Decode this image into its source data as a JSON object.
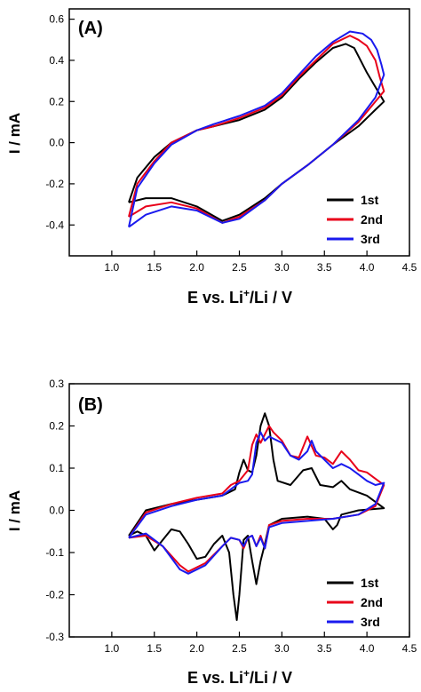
{
  "chart_data": [
    {
      "type": "line",
      "panel_label": "(A)",
      "xlabel_main": "E vs. Li",
      "xlabel_sup": "+",
      "xlabel_tail": "/Li / V",
      "ylabel": "I / mA",
      "xlim": [
        0.5,
        4.5
      ],
      "ylim": [
        -0.55,
        0.65
      ],
      "xticks": [
        "1.0",
        "1.5",
        "2.0",
        "2.5",
        "3.0",
        "3.5",
        "4.0",
        "4.5"
      ],
      "xtick_values": [
        1.0,
        1.5,
        2.0,
        2.5,
        3.0,
        3.5,
        4.0,
        4.5
      ],
      "yticks": [
        "-0.4",
        "-0.2",
        "0.0",
        "0.2",
        "0.4",
        "0.6"
      ],
      "ytick_values": [
        -0.4,
        -0.2,
        0.0,
        0.2,
        0.4,
        0.6
      ],
      "legend_position": "lower-right",
      "series": [
        {
          "name": "1st",
          "color": "#000000",
          "points": [
            [
              1.2,
              -0.29
            ],
            [
              1.4,
              -0.27
            ],
            [
              1.7,
              -0.27
            ],
            [
              2.0,
              -0.31
            ],
            [
              2.3,
              -0.38
            ],
            [
              2.5,
              -0.35
            ],
            [
              2.8,
              -0.27
            ],
            [
              3.0,
              -0.2
            ],
            [
              3.3,
              -0.11
            ],
            [
              3.6,
              -0.01
            ],
            [
              3.9,
              0.08
            ],
            [
              4.1,
              0.16
            ],
            [
              4.2,
              0.2
            ],
            [
              4.1,
              0.27
            ],
            [
              4.0,
              0.34
            ],
            [
              3.9,
              0.42
            ],
            [
              3.85,
              0.46
            ],
            [
              3.75,
              0.48
            ],
            [
              3.6,
              0.46
            ],
            [
              3.4,
              0.39
            ],
            [
              3.2,
              0.31
            ],
            [
              3.0,
              0.22
            ],
            [
              2.8,
              0.16
            ],
            [
              2.5,
              0.11
            ],
            [
              2.2,
              0.08
            ],
            [
              2.0,
              0.06
            ],
            [
              1.7,
              0.0
            ],
            [
              1.5,
              -0.07
            ],
            [
              1.3,
              -0.17
            ],
            [
              1.2,
              -0.29
            ]
          ]
        },
        {
          "name": "2nd",
          "color": "#e8001a",
          "points": [
            [
              1.2,
              -0.36
            ],
            [
              1.4,
              -0.31
            ],
            [
              1.7,
              -0.29
            ],
            [
              2.0,
              -0.32
            ],
            [
              2.3,
              -0.39
            ],
            [
              2.5,
              -0.36
            ],
            [
              2.8,
              -0.28
            ],
            [
              3.0,
              -0.2
            ],
            [
              3.3,
              -0.11
            ],
            [
              3.6,
              -0.01
            ],
            [
              3.9,
              0.1
            ],
            [
              4.1,
              0.2
            ],
            [
              4.2,
              0.25
            ],
            [
              4.15,
              0.32
            ],
            [
              4.1,
              0.4
            ],
            [
              4.0,
              0.47
            ],
            [
              3.9,
              0.5
            ],
            [
              3.8,
              0.52
            ],
            [
              3.6,
              0.48
            ],
            [
              3.4,
              0.4
            ],
            [
              3.2,
              0.32
            ],
            [
              3.0,
              0.23
            ],
            [
              2.8,
              0.17
            ],
            [
              2.5,
              0.12
            ],
            [
              2.2,
              0.08
            ],
            [
              2.0,
              0.06
            ],
            [
              1.7,
              0.0
            ],
            [
              1.5,
              -0.09
            ],
            [
              1.3,
              -0.2
            ],
            [
              1.2,
              -0.36
            ]
          ]
        },
        {
          "name": "3rd",
          "color": "#1a1aee",
          "points": [
            [
              1.2,
              -0.41
            ],
            [
              1.4,
              -0.35
            ],
            [
              1.7,
              -0.31
            ],
            [
              2.0,
              -0.33
            ],
            [
              2.3,
              -0.39
            ],
            [
              2.5,
              -0.37
            ],
            [
              2.8,
              -0.28
            ],
            [
              3.0,
              -0.2
            ],
            [
              3.3,
              -0.11
            ],
            [
              3.6,
              -0.01
            ],
            [
              3.9,
              0.11
            ],
            [
              4.1,
              0.22
            ],
            [
              4.2,
              0.33
            ],
            [
              4.17,
              0.38
            ],
            [
              4.12,
              0.45
            ],
            [
              4.05,
              0.5
            ],
            [
              3.95,
              0.53
            ],
            [
              3.8,
              0.54
            ],
            [
              3.6,
              0.49
            ],
            [
              3.4,
              0.42
            ],
            [
              3.2,
              0.33
            ],
            [
              3.0,
              0.24
            ],
            [
              2.8,
              0.18
            ],
            [
              2.5,
              0.13
            ],
            [
              2.2,
              0.09
            ],
            [
              2.0,
              0.06
            ],
            [
              1.7,
              -0.01
            ],
            [
              1.5,
              -0.1
            ],
            [
              1.3,
              -0.22
            ],
            [
              1.2,
              -0.41
            ]
          ]
        }
      ]
    },
    {
      "type": "line",
      "panel_label": "(B)",
      "xlabel_main": "E vs. Li",
      "xlabel_sup": "+",
      "xlabel_tail": "/Li / V",
      "ylabel": "I / mA",
      "xlim": [
        0.5,
        4.5
      ],
      "ylim": [
        -0.3,
        0.3
      ],
      "xticks": [
        "1.0",
        "1.5",
        "2.0",
        "2.5",
        "3.0",
        "3.5",
        "4.0",
        "4.5"
      ],
      "xtick_values": [
        1.0,
        1.5,
        2.0,
        2.5,
        3.0,
        3.5,
        4.0,
        4.5
      ],
      "yticks": [
        "-0.3",
        "-0.2",
        "-0.1",
        "0.0",
        "0.1",
        "0.2",
        "0.3"
      ],
      "ytick_values": [
        -0.3,
        -0.2,
        -0.1,
        0.0,
        0.1,
        0.2,
        0.3
      ],
      "legend_position": "lower-right",
      "series": [
        {
          "name": "1st",
          "color": "#000000",
          "points": [
            [
              1.2,
              -0.06
            ],
            [
              1.3,
              -0.05
            ],
            [
              1.4,
              -0.06
            ],
            [
              1.5,
              -0.095
            ],
            [
              1.6,
              -0.07
            ],
            [
              1.7,
              -0.045
            ],
            [
              1.8,
              -0.05
            ],
            [
              1.9,
              -0.08
            ],
            [
              2.0,
              -0.115
            ],
            [
              2.1,
              -0.11
            ],
            [
              2.2,
              -0.08
            ],
            [
              2.3,
              -0.06
            ],
            [
              2.38,
              -0.1
            ],
            [
              2.43,
              -0.2
            ],
            [
              2.47,
              -0.26
            ],
            [
              2.5,
              -0.2
            ],
            [
              2.55,
              -0.07
            ],
            [
              2.6,
              -0.06
            ],
            [
              2.65,
              -0.12
            ],
            [
              2.7,
              -0.175
            ],
            [
              2.75,
              -0.12
            ],
            [
              2.8,
              -0.08
            ],
            [
              2.85,
              -0.035
            ],
            [
              3.0,
              -0.02
            ],
            [
              3.3,
              -0.015
            ],
            [
              3.5,
              -0.02
            ],
            [
              3.6,
              -0.045
            ],
            [
              3.65,
              -0.035
            ],
            [
              3.7,
              -0.01
            ],
            [
              3.9,
              0.0
            ],
            [
              4.2,
              0.005
            ],
            [
              4.0,
              0.035
            ],
            [
              3.8,
              0.05
            ],
            [
              3.7,
              0.07
            ],
            [
              3.6,
              0.055
            ],
            [
              3.45,
              0.06
            ],
            [
              3.35,
              0.1
            ],
            [
              3.25,
              0.095
            ],
            [
              3.1,
              0.06
            ],
            [
              2.95,
              0.07
            ],
            [
              2.9,
              0.12
            ],
            [
              2.85,
              0.2
            ],
            [
              2.8,
              0.23
            ],
            [
              2.75,
              0.2
            ],
            [
              2.7,
              0.13
            ],
            [
              2.65,
              0.09
            ],
            [
              2.6,
              0.095
            ],
            [
              2.55,
              0.12
            ],
            [
              2.5,
              0.09
            ],
            [
              2.45,
              0.05
            ],
            [
              2.3,
              0.035
            ],
            [
              2.0,
              0.025
            ],
            [
              1.7,
              0.015
            ],
            [
              1.4,
              0.0
            ],
            [
              1.2,
              -0.06
            ]
          ]
        },
        {
          "name": "2nd",
          "color": "#e8001a",
          "points": [
            [
              1.2,
              -0.065
            ],
            [
              1.4,
              -0.06
            ],
            [
              1.6,
              -0.085
            ],
            [
              1.8,
              -0.13
            ],
            [
              1.9,
              -0.145
            ],
            [
              2.1,
              -0.125
            ],
            [
              2.3,
              -0.085
            ],
            [
              2.4,
              -0.065
            ],
            [
              2.5,
              -0.07
            ],
            [
              2.55,
              -0.09
            ],
            [
              2.6,
              -0.065
            ],
            [
              2.65,
              -0.06
            ],
            [
              2.7,
              -0.085
            ],
            [
              2.75,
              -0.06
            ],
            [
              2.8,
              -0.09
            ],
            [
              2.85,
              -0.035
            ],
            [
              3.0,
              -0.025
            ],
            [
              3.3,
              -0.02
            ],
            [
              3.6,
              -0.02
            ],
            [
              3.9,
              -0.01
            ],
            [
              4.1,
              0.01
            ],
            [
              4.2,
              0.06
            ],
            [
              4.1,
              0.075
            ],
            [
              4.0,
              0.09
            ],
            [
              3.9,
              0.095
            ],
            [
              3.8,
              0.12
            ],
            [
              3.7,
              0.14
            ],
            [
              3.6,
              0.11
            ],
            [
              3.5,
              0.125
            ],
            [
              3.4,
              0.13
            ],
            [
              3.3,
              0.175
            ],
            [
              3.2,
              0.125
            ],
            [
              3.1,
              0.13
            ],
            [
              3.0,
              0.165
            ],
            [
              2.9,
              0.185
            ],
            [
              2.85,
              0.2
            ],
            [
              2.8,
              0.18
            ],
            [
              2.75,
              0.16
            ],
            [
              2.7,
              0.18
            ],
            [
              2.65,
              0.155
            ],
            [
              2.6,
              0.095
            ],
            [
              2.5,
              0.07
            ],
            [
              2.4,
              0.06
            ],
            [
              2.3,
              0.04
            ],
            [
              2.0,
              0.03
            ],
            [
              1.7,
              0.015
            ],
            [
              1.4,
              -0.005
            ],
            [
              1.2,
              -0.065
            ]
          ]
        },
        {
          "name": "3rd",
          "color": "#1a1aee",
          "points": [
            [
              1.2,
              -0.065
            ],
            [
              1.4,
              -0.055
            ],
            [
              1.6,
              -0.085
            ],
            [
              1.8,
              -0.14
            ],
            [
              1.9,
              -0.15
            ],
            [
              2.1,
              -0.13
            ],
            [
              2.3,
              -0.085
            ],
            [
              2.4,
              -0.065
            ],
            [
              2.5,
              -0.07
            ],
            [
              2.55,
              -0.085
            ],
            [
              2.6,
              -0.065
            ],
            [
              2.65,
              -0.06
            ],
            [
              2.7,
              -0.085
            ],
            [
              2.75,
              -0.065
            ],
            [
              2.8,
              -0.09
            ],
            [
              2.85,
              -0.04
            ],
            [
              3.0,
              -0.03
            ],
            [
              3.3,
              -0.025
            ],
            [
              3.6,
              -0.02
            ],
            [
              3.9,
              -0.01
            ],
            [
              4.1,
              0.015
            ],
            [
              4.2,
              0.065
            ],
            [
              4.1,
              0.06
            ],
            [
              4.0,
              0.07
            ],
            [
              3.9,
              0.085
            ],
            [
              3.8,
              0.1
            ],
            [
              3.7,
              0.11
            ],
            [
              3.6,
              0.1
            ],
            [
              3.5,
              0.12
            ],
            [
              3.4,
              0.14
            ],
            [
              3.35,
              0.165
            ],
            [
              3.3,
              0.14
            ],
            [
              3.2,
              0.12
            ],
            [
              3.1,
              0.13
            ],
            [
              3.0,
              0.16
            ],
            [
              2.9,
              0.17
            ],
            [
              2.85,
              0.175
            ],
            [
              2.8,
              0.165
            ],
            [
              2.75,
              0.185
            ],
            [
              2.7,
              0.16
            ],
            [
              2.65,
              0.085
            ],
            [
              2.6,
              0.07
            ],
            [
              2.5,
              0.065
            ],
            [
              2.4,
              0.05
            ],
            [
              2.3,
              0.035
            ],
            [
              2.0,
              0.025
            ],
            [
              1.7,
              0.01
            ],
            [
              1.4,
              -0.01
            ],
            [
              1.2,
              -0.065
            ]
          ]
        }
      ]
    }
  ]
}
